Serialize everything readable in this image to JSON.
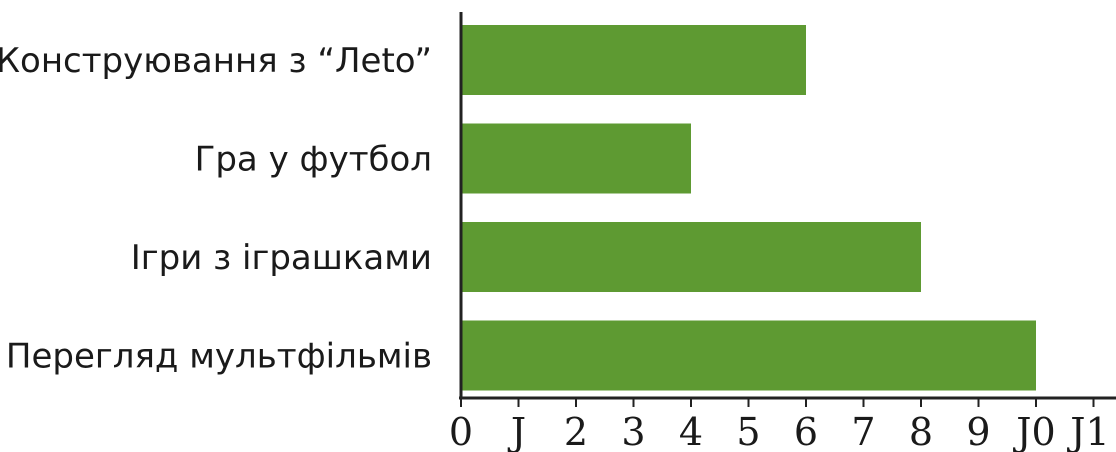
{
  "chart_data": {
    "type": "bar",
    "orientation": "horizontal",
    "categories": [
      "Конструювання з “Лeto”",
      "Гра у футбол",
      "Ігри з іграшками",
      "Перегляд мультфільмів"
    ],
    "values": [
      6,
      4,
      8,
      10
    ],
    "xlim": [
      0,
      11
    ],
    "x_ticks": [
      0,
      1,
      2,
      3,
      4,
      5,
      6,
      7,
      8,
      9,
      10,
      11
    ],
    "x_tick_labels": [
      "0",
      "J",
      "2",
      "3",
      "4",
      "5",
      "6",
      "7",
      "8",
      "9",
      "J0",
      "J1"
    ],
    "bar_color": "#5e9a32",
    "axis_color": "#222222",
    "grid": false,
    "legend": "none"
  }
}
